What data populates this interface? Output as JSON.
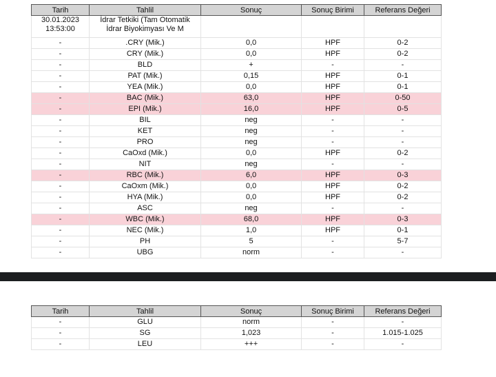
{
  "headers": [
    "Tarih",
    "Tahlil",
    "Sonuç",
    "Sonuç Birimi",
    "Referans Değeri"
  ],
  "table1": {
    "first_row": {
      "date": "30.01.2023",
      "time": "13:53:00",
      "test_line1": "İdrar Tetkiki (Tam Otomatik",
      "test_line2": "İdrar Biyokimyası Ve M"
    },
    "rows": [
      {
        "date": "-",
        "test": ".CRY (Mik.)",
        "result": "0,0",
        "unit": "HPF",
        "ref": "0-2",
        "flag": false
      },
      {
        "date": "-",
        "test": "CRY (Mik.)",
        "result": "0,0",
        "unit": "HPF",
        "ref": "0-2",
        "flag": false
      },
      {
        "date": "-",
        "test": "BLD",
        "result": "+",
        "unit": "-",
        "ref": "-",
        "flag": false
      },
      {
        "date": "-",
        "test": "PAT (Mik.)",
        "result": "0,15",
        "unit": "HPF",
        "ref": "0-1",
        "flag": false
      },
      {
        "date": "-",
        "test": "YEA (Mik.)",
        "result": "0,0",
        "unit": "HPF",
        "ref": "0-1",
        "flag": false
      },
      {
        "date": "-",
        "test": "BAC (Mik.)",
        "result": "63,0",
        "unit": "HPF",
        "ref": "0-50",
        "flag": true
      },
      {
        "date": "-",
        "test": "EPI (Mik.)",
        "result": "16,0",
        "unit": "HPF",
        "ref": "0-5",
        "flag": true
      },
      {
        "date": "-",
        "test": "BIL",
        "result": "neg",
        "unit": "-",
        "ref": "-",
        "flag": false
      },
      {
        "date": "-",
        "test": "KET",
        "result": "neg",
        "unit": "-",
        "ref": "-",
        "flag": false
      },
      {
        "date": "-",
        "test": "PRO",
        "result": "neg",
        "unit": "-",
        "ref": "-",
        "flag": false
      },
      {
        "date": "-",
        "test": "CaOxd (Mik.)",
        "result": "0,0",
        "unit": "HPF",
        "ref": "0-2",
        "flag": false
      },
      {
        "date": "-",
        "test": "NIT",
        "result": "neg",
        "unit": "-",
        "ref": "-",
        "flag": false
      },
      {
        "date": "-",
        "test": "RBC (Mik.)",
        "result": "6,0",
        "unit": "HPF",
        "ref": "0-3",
        "flag": true
      },
      {
        "date": "-",
        "test": "CaOxm (Mik.)",
        "result": "0,0",
        "unit": "HPF",
        "ref": "0-2",
        "flag": false
      },
      {
        "date": "-",
        "test": "HYA (Mik.)",
        "result": "0,0",
        "unit": "HPF",
        "ref": "0-2",
        "flag": false
      },
      {
        "date": "-",
        "test": "ASC",
        "result": "neg",
        "unit": "-",
        "ref": "-",
        "flag": false
      },
      {
        "date": "-",
        "test": "WBC (Mik.)",
        "result": "68,0",
        "unit": "HPF",
        "ref": "0-3",
        "flag": true
      },
      {
        "date": "-",
        "test": "NEC (Mik.)",
        "result": "1,0",
        "unit": "HPF",
        "ref": "0-1",
        "flag": false
      },
      {
        "date": "-",
        "test": "PH",
        "result": "5",
        "unit": "-",
        "ref": "5-7",
        "flag": false
      },
      {
        "date": "-",
        "test": "UBG",
        "result": "norm",
        "unit": "-",
        "ref": "-",
        "flag": false
      }
    ]
  },
  "table2": {
    "rows": [
      {
        "date": "-",
        "test": "GLU",
        "result": "norm",
        "unit": "-",
        "ref": "-",
        "flag": false
      },
      {
        "date": "-",
        "test": "SG",
        "result": "1,023",
        "unit": "-",
        "ref": "1.015-1.025",
        "flag": false
      },
      {
        "date": "-",
        "test": "LEU",
        "result": "+++",
        "unit": "-",
        "ref": "-",
        "flag": false
      }
    ]
  },
  "colors": {
    "highlight": "#f9d2d8",
    "header": "#d4d4d4",
    "divider": "#1c1e20"
  }
}
